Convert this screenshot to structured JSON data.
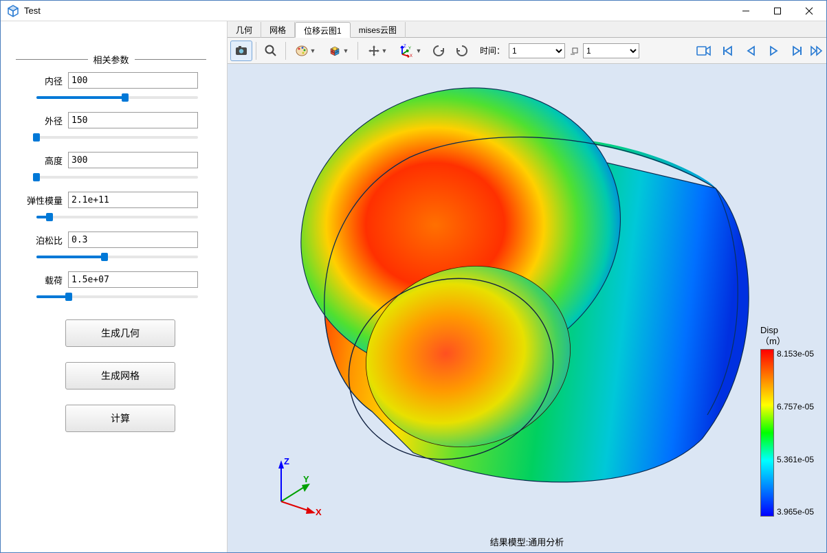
{
  "window": {
    "title": "Test"
  },
  "sidebar": {
    "group_title": "相关参数",
    "params": [
      {
        "label": "内径",
        "value": "100",
        "slider_pct": 55
      },
      {
        "label": "外径",
        "value": "150",
        "slider_pct": 0
      },
      {
        "label": "高度",
        "value": "300",
        "slider_pct": 0
      },
      {
        "label": "弹性模量",
        "value": "2.1e+11",
        "slider_pct": 8
      },
      {
        "label": "泊松比",
        "value": "0.3",
        "slider_pct": 42
      },
      {
        "label": "载荷",
        "value": "1.5e+07",
        "slider_pct": 20
      }
    ],
    "buttons": {
      "gen_geom": "生成几何",
      "gen_mesh": "生成网格",
      "compute": "计算"
    }
  },
  "view": {
    "tabs": [
      "几何",
      "网格",
      "位移云图1",
      "mises云图"
    ],
    "active_tab": 2,
    "toolbar": {
      "time_label": "时间：",
      "time_value_a": "1",
      "time_value_b": "1"
    },
    "canvas": {
      "background_color": "#dbe6f4",
      "footer_caption": "结果模型:通用分析"
    },
    "axis_triad": {
      "x": {
        "label": "X",
        "color": "#ff0000"
      },
      "y": {
        "label": "Y",
        "color": "#00b000"
      },
      "z": {
        "label": "Z",
        "color": "#0000ff"
      }
    },
    "legend": {
      "title_line1": "Disp",
      "title_line2": "（m）",
      "ticks": [
        "8.153e-05",
        "6.757e-05",
        "5.361e-05",
        "3.965e-05"
      ],
      "gradient_colors": [
        "#ff0000",
        "#ff8000",
        "#ffff00",
        "#00ff00",
        "#00ffff",
        "#0080ff",
        "#0000ff"
      ]
    }
  }
}
